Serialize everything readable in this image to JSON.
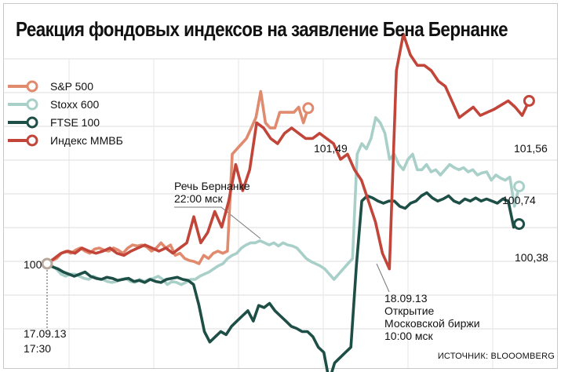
{
  "title": "Реакция фондовых индексов на заявление Бена Бернанке",
  "source": "ИСТОЧНИК: BLOOOMBERG",
  "legend": [
    {
      "name": "S&P 500",
      "color": "#e08a6e"
    },
    {
      "name": "Stoxx 600",
      "color": "#a9cfc9"
    },
    {
      "name": "FTSE 100",
      "color": "#1e4f47"
    },
    {
      "name": "Индекс ММВБ",
      "color": "#c2453a"
    }
  ],
  "annotations": {
    "speech_line1": "Речь Бернанке",
    "speech_line2": "22:00 мск",
    "open_line1": "18.09.13",
    "open_line2": "Открытие",
    "open_line3": "Московской биржи",
    "open_line4": "10:00 мск",
    "start_date": "17.09.13",
    "start_time": "17:30",
    "base": "100"
  },
  "end_labels": {
    "sp500": "101,49",
    "micex": "101,56",
    "stoxx": "100,74",
    "ftse": "100,38"
  },
  "chart_data": {
    "type": "line",
    "title": "Реакция фондовых индексов на заявление Бена Бернанке",
    "xlabel": "",
    "ylabel": "",
    "x_start_label": "17.09.13 17:30",
    "ylim": [
      99.0,
      102.2
    ],
    "grid": true,
    "legend_position": "top-left",
    "series": [
      {
        "name": "S&P 500",
        "color": "#e08a6e",
        "x_end": 0.52,
        "end_value": 101.49,
        "values": [
          100.0,
          100.03,
          100.05,
          100.1,
          100.12,
          100.1,
          100.13,
          100.15,
          100.12,
          100.1,
          100.14,
          100.15,
          100.13,
          100.12,
          100.15,
          100.13,
          100.1,
          100.15,
          100.18,
          100.17,
          100.18,
          100.16,
          100.12,
          100.15,
          100.2,
          100.15,
          100.18,
          100.08,
          100.1,
          100.05,
          100.03,
          100.02,
          100.0,
          100.08,
          100.05,
          100.1,
          100.12,
          100.1,
          100.12,
          101.05,
          101.1,
          101.15,
          101.2,
          101.3,
          101.4,
          101.65,
          101.35,
          101.3,
          101.3,
          101.45,
          101.45,
          101.45,
          101.45,
          101.5,
          101.35,
          101.49
        ]
      },
      {
        "name": "Stoxx 600",
        "color": "#a9cfc9",
        "x_end": 0.94,
        "end_value": 100.74,
        "values": [
          100.0,
          99.98,
          99.95,
          99.9,
          99.88,
          99.9,
          99.9,
          99.88,
          99.86,
          99.85,
          99.88,
          99.86,
          99.85,
          99.83,
          99.82,
          99.83,
          99.85,
          99.86,
          99.83,
          99.82,
          99.85,
          99.83,
          99.85,
          99.86,
          99.88,
          99.85,
          99.8,
          99.83,
          99.82,
          99.8,
          99.82,
          99.85,
          99.85,
          99.88,
          99.9,
          99.92,
          99.95,
          99.98,
          100.0,
          100.05,
          100.08,
          100.1,
          100.15,
          100.18,
          100.2,
          100.2,
          100.22,
          100.2,
          100.18,
          100.2,
          100.17,
          100.2,
          100.18,
          100.17,
          100.15,
          100.1,
          100.05,
          100.02,
          100.0,
          99.98,
          99.95,
          99.9,
          99.85,
          99.9,
          99.95,
          100.0,
          100.05,
          101.05,
          101.15,
          101.1,
          101.2,
          101.4,
          101.35,
          101.25,
          101.0,
          101.05,
          100.95,
          100.9,
          101.0,
          101.05,
          100.9,
          100.9,
          100.95,
          100.88,
          100.9,
          100.85,
          100.9,
          100.95,
          100.92,
          100.9,
          100.92,
          100.88,
          100.9,
          100.85,
          100.87,
          100.88,
          100.8,
          100.85,
          100.82,
          100.8,
          100.83,
          100.55,
          100.74
        ]
      },
      {
        "name": "FTSE 100",
        "color": "#1e4f47",
        "x_end": 0.94,
        "end_value": 100.38,
        "values": [
          100.0,
          99.97,
          99.95,
          99.92,
          99.9,
          99.88,
          99.9,
          99.92,
          99.88,
          99.86,
          99.85,
          99.87,
          99.86,
          99.84,
          99.85,
          99.86,
          99.83,
          99.84,
          99.82,
          99.85,
          99.83,
          99.82,
          99.85,
          99.86,
          99.87,
          99.85,
          99.84,
          99.8,
          99.6,
          99.35,
          99.25,
          99.3,
          99.35,
          99.32,
          99.4,
          99.45,
          99.5,
          99.55,
          99.45,
          99.6,
          99.58,
          99.62,
          99.55,
          99.5,
          99.45,
          99.4,
          99.38,
          99.35,
          99.35,
          99.3,
          99.2,
          99.15,
          98.88,
          99.05,
          99.1,
          99.15,
          99.2,
          99.98,
          100.6,
          100.65,
          100.63,
          100.6,
          100.58,
          100.6,
          100.6,
          100.55,
          100.53,
          100.58,
          100.6,
          100.65,
          100.68,
          100.63,
          100.6,
          100.62,
          100.65,
          100.6,
          100.58,
          100.62,
          100.6,
          100.63,
          100.6,
          100.62,
          100.6,
          100.58,
          100.62,
          100.6,
          100.35,
          100.38
        ]
      },
      {
        "name": "Индекс ММВБ",
        "color": "#c2453a",
        "x_end": 0.96,
        "end_value": 101.56,
        "values": [
          100.0,
          100.05,
          100.1,
          100.12,
          100.1,
          100.15,
          100.12,
          100.1,
          100.12,
          100.15,
          100.1,
          100.08,
          100.12,
          100.15,
          100.18,
          100.15,
          100.12,
          100.15,
          100.1,
          100.15,
          100.2,
          100.45,
          100.2,
          100.3,
          100.5,
          100.35,
          100.6,
          100.95,
          100.7,
          100.9,
          101.35,
          101.3,
          101.2,
          101.15,
          101.25,
          101.3,
          101.25,
          101.2,
          101.2,
          101.25,
          101.2,
          101.15,
          101.0,
          101.05,
          100.9,
          100.8,
          100.6,
          100.4,
          100.1,
          99.95,
          101.85,
          102.2,
          102.0,
          101.9,
          101.9,
          101.85,
          101.75,
          101.7,
          101.55,
          101.4,
          101.45,
          101.5,
          101.42,
          101.45,
          101.48,
          101.52,
          101.56,
          101.5,
          101.42,
          101.56
        ]
      }
    ]
  }
}
